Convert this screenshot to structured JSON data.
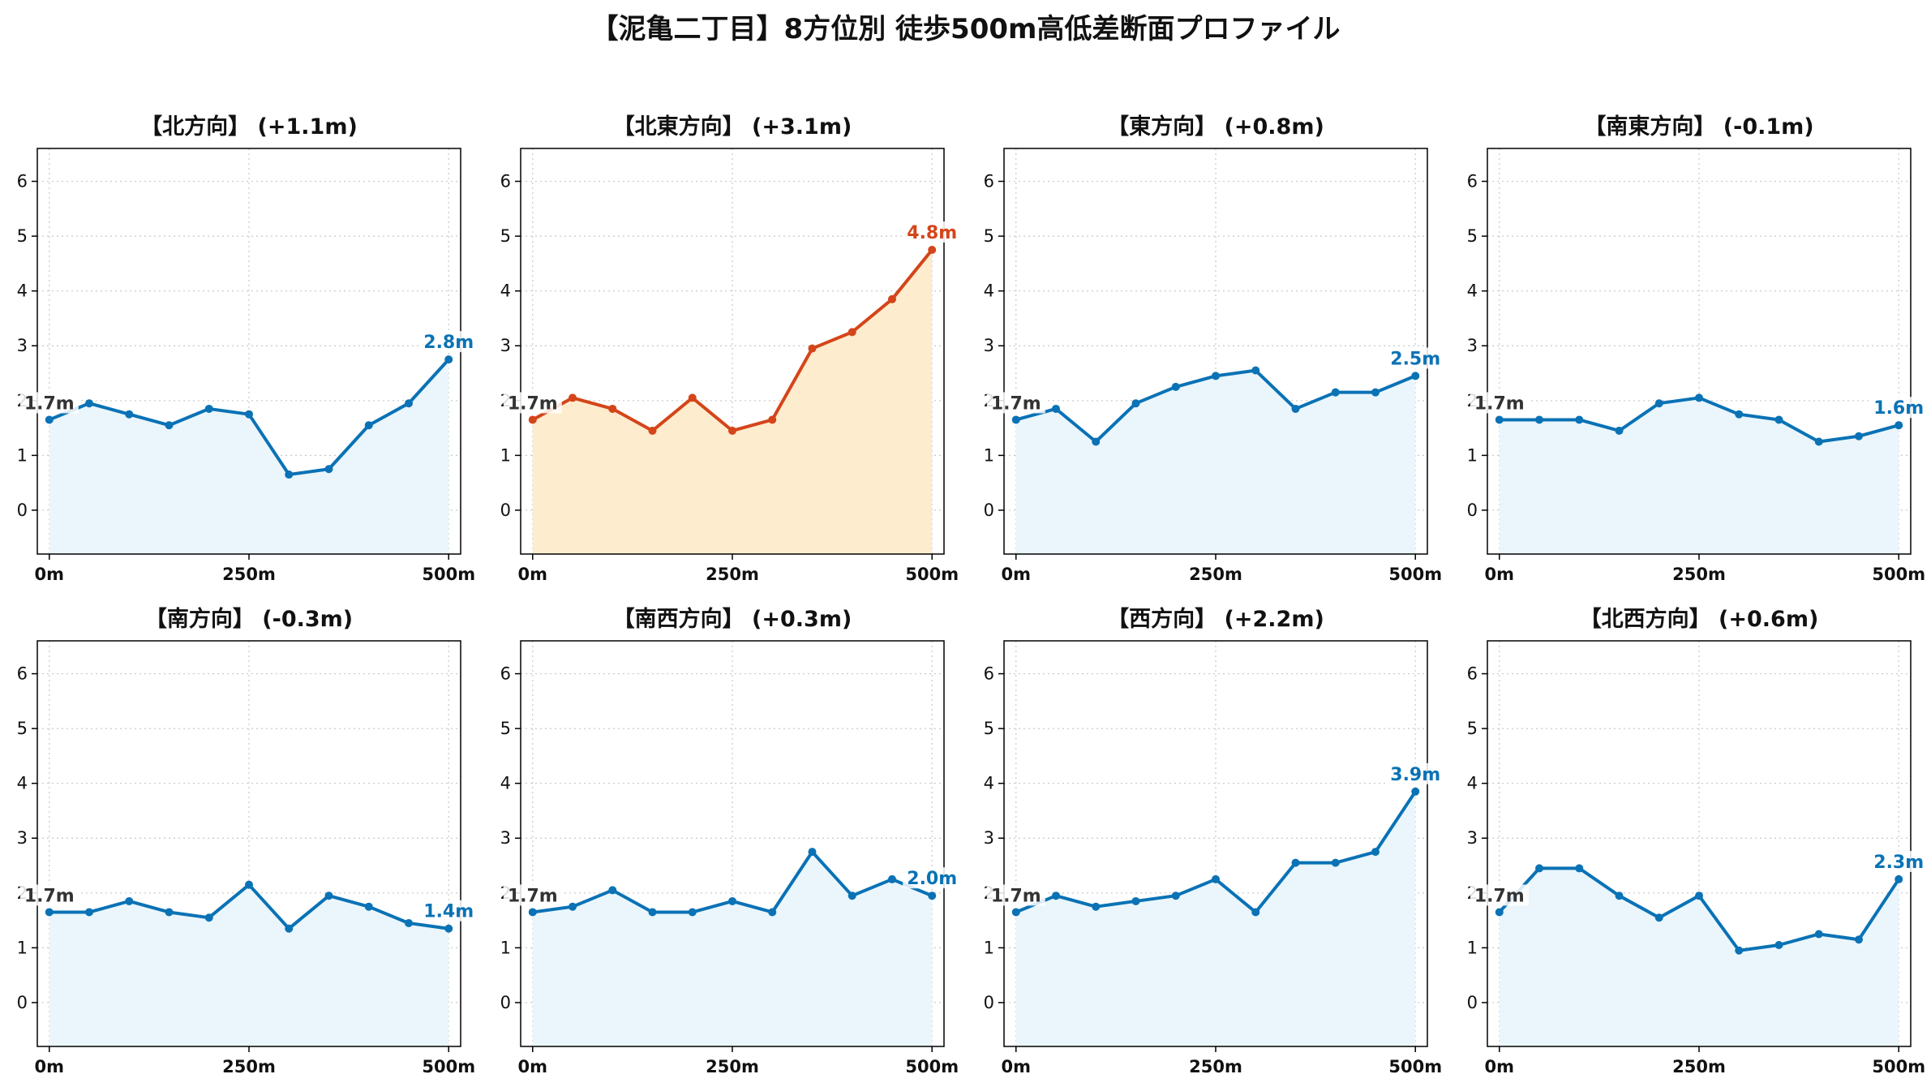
{
  "title": "【泥亀二丁目】8方位別 徒歩500m高低差断面プロファイル",
  "colors": {
    "normal_line": "#0a72b5",
    "normal_fill": "#eaf6fc",
    "highlight_line": "#d4451a",
    "highlight_fill": "#fdeccd",
    "grid": "#c8c8c8",
    "label_start": "#333333"
  },
  "chart_data": [
    {
      "type": "line",
      "title": "【北方向】 (+1.1m)",
      "highlight": false,
      "x": [
        0,
        50,
        100,
        150,
        200,
        250,
        300,
        350,
        400,
        450,
        500
      ],
      "y": [
        1.65,
        1.95,
        1.75,
        1.55,
        1.85,
        1.75,
        0.65,
        0.75,
        1.55,
        1.95,
        2.75
      ],
      "start_label": "1.7m",
      "end_label": "2.8m",
      "xticks": [
        "0m",
        "250m",
        "500m"
      ],
      "yticks": [
        "0",
        "1",
        "2",
        "3",
        "4",
        "5",
        "6"
      ],
      "ylim": [
        -0.8,
        6.6
      ],
      "xlim": [
        -15,
        515
      ],
      "grid": true
    },
    {
      "type": "line",
      "title": "【北東方向】 (+3.1m)",
      "highlight": true,
      "x": [
        0,
        50,
        100,
        150,
        200,
        250,
        300,
        350,
        400,
        450,
        500
      ],
      "y": [
        1.65,
        2.05,
        1.85,
        1.45,
        2.05,
        1.45,
        1.65,
        2.95,
        3.25,
        3.85,
        4.75
      ],
      "start_label": "1.7m",
      "end_label": "4.8m",
      "xticks": [
        "0m",
        "250m",
        "500m"
      ],
      "yticks": [
        "0",
        "1",
        "2",
        "3",
        "4",
        "5",
        "6"
      ],
      "ylim": [
        -0.8,
        6.6
      ],
      "xlim": [
        -15,
        515
      ],
      "grid": true
    },
    {
      "type": "line",
      "title": "【東方向】 (+0.8m)",
      "highlight": false,
      "x": [
        0,
        50,
        100,
        150,
        200,
        250,
        300,
        350,
        400,
        450,
        500
      ],
      "y": [
        1.65,
        1.85,
        1.25,
        1.95,
        2.25,
        2.45,
        2.55,
        1.85,
        2.15,
        2.15,
        2.45
      ],
      "start_label": "1.7m",
      "end_label": "2.5m",
      "xticks": [
        "0m",
        "250m",
        "500m"
      ],
      "yticks": [
        "0",
        "1",
        "2",
        "3",
        "4",
        "5",
        "6"
      ],
      "ylim": [
        -0.8,
        6.6
      ],
      "xlim": [
        -15,
        515
      ],
      "grid": true
    },
    {
      "type": "line",
      "title": "【南東方向】 (-0.1m)",
      "highlight": false,
      "x": [
        0,
        50,
        100,
        150,
        200,
        250,
        300,
        350,
        400,
        450,
        500
      ],
      "y": [
        1.65,
        1.65,
        1.65,
        1.45,
        1.95,
        2.05,
        1.75,
        1.65,
        1.25,
        1.35,
        1.55
      ],
      "start_label": "1.7m",
      "end_label": "1.6m",
      "xticks": [
        "0m",
        "250m",
        "500m"
      ],
      "yticks": [
        "0",
        "1",
        "2",
        "3",
        "4",
        "5",
        "6"
      ],
      "ylim": [
        -0.8,
        6.6
      ],
      "xlim": [
        -15,
        515
      ],
      "grid": true
    },
    {
      "type": "line",
      "title": "【南方向】 (-0.3m)",
      "highlight": false,
      "x": [
        0,
        50,
        100,
        150,
        200,
        250,
        300,
        350,
        400,
        450,
        500
      ],
      "y": [
        1.65,
        1.65,
        1.85,
        1.65,
        1.55,
        2.15,
        1.35,
        1.95,
        1.75,
        1.45,
        1.35
      ],
      "start_label": "1.7m",
      "end_label": "1.4m",
      "xticks": [
        "0m",
        "250m",
        "500m"
      ],
      "yticks": [
        "0",
        "1",
        "2",
        "3",
        "4",
        "5",
        "6"
      ],
      "ylim": [
        -0.8,
        6.6
      ],
      "xlim": [
        -15,
        515
      ],
      "grid": true
    },
    {
      "type": "line",
      "title": "【南西方向】 (+0.3m)",
      "highlight": false,
      "x": [
        0,
        50,
        100,
        150,
        200,
        250,
        300,
        350,
        400,
        450,
        500
      ],
      "y": [
        1.65,
        1.75,
        2.05,
        1.65,
        1.65,
        1.85,
        1.65,
        2.75,
        1.95,
        2.25,
        1.95
      ],
      "start_label": "1.7m",
      "end_label": "2.0m",
      "xticks": [
        "0m",
        "250m",
        "500m"
      ],
      "yticks": [
        "0",
        "1",
        "2",
        "3",
        "4",
        "5",
        "6"
      ],
      "ylim": [
        -0.8,
        6.6
      ],
      "xlim": [
        -15,
        515
      ],
      "grid": true
    },
    {
      "type": "line",
      "title": "【西方向】 (+2.2m)",
      "highlight": false,
      "x": [
        0,
        50,
        100,
        150,
        200,
        250,
        300,
        350,
        400,
        450,
        500
      ],
      "y": [
        1.65,
        1.95,
        1.75,
        1.85,
        1.95,
        2.25,
        1.65,
        2.55,
        2.55,
        2.75,
        3.85
      ],
      "start_label": "1.7m",
      "end_label": "3.9m",
      "xticks": [
        "0m",
        "250m",
        "500m"
      ],
      "yticks": [
        "0",
        "1",
        "2",
        "3",
        "4",
        "5",
        "6"
      ],
      "ylim": [
        -0.8,
        6.6
      ],
      "xlim": [
        -15,
        515
      ],
      "grid": true
    },
    {
      "type": "line",
      "title": "【北西方向】 (+0.6m)",
      "highlight": false,
      "x": [
        0,
        50,
        100,
        150,
        200,
        250,
        300,
        350,
        400,
        450,
        500
      ],
      "y": [
        1.65,
        2.45,
        2.45,
        1.95,
        1.55,
        1.95,
        0.95,
        1.05,
        1.25,
        1.15,
        2.25
      ],
      "start_label": "1.7m",
      "end_label": "2.3m",
      "xticks": [
        "0m",
        "250m",
        "500m"
      ],
      "yticks": [
        "0",
        "1",
        "2",
        "3",
        "4",
        "5",
        "6"
      ],
      "ylim": [
        -0.8,
        6.6
      ],
      "xlim": [
        -15,
        515
      ],
      "grid": true
    }
  ]
}
